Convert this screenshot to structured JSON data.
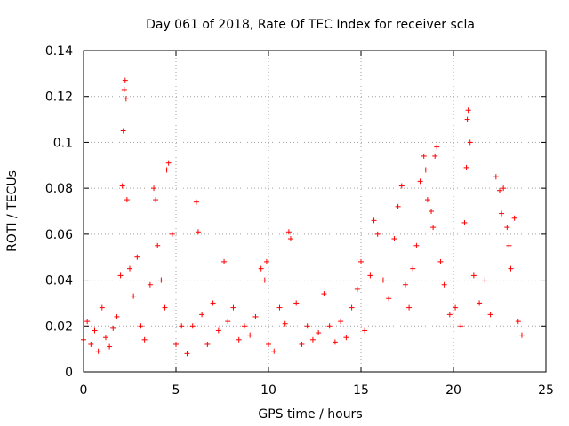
{
  "chart_data": {
    "type": "scatter",
    "title": "Day 061 of 2018, Rate Of TEC Index for receiver scla",
    "xlabel": "GPS time / hours",
    "ylabel": "ROTI / TECUs",
    "xlim": [
      0,
      25
    ],
    "ylim": [
      0,
      0.14
    ],
    "xticks": [
      0,
      5,
      10,
      15,
      20,
      25
    ],
    "xtick_labels": [
      "0",
      "5",
      "10",
      "15",
      "20",
      "25"
    ],
    "yticks": [
      0,
      0.02,
      0.04,
      0.06,
      0.08,
      0.1,
      0.12,
      0.14
    ],
    "ytick_labels": [
      "0",
      "0.02",
      "0.04",
      "0.06",
      "0.08",
      "0.1",
      "0.12",
      "0.14"
    ],
    "grid": true,
    "marker": "plus",
    "color": "#ff0000",
    "series": [
      {
        "name": "ROTI",
        "x": [
          0.0,
          0.2,
          0.4,
          0.6,
          0.8,
          1.0,
          1.2,
          1.4,
          1.6,
          1.8,
          2.0,
          2.1,
          2.15,
          2.2,
          2.25,
          2.3,
          2.35,
          2.5,
          2.7,
          2.9,
          3.1,
          3.3,
          3.6,
          3.8,
          3.9,
          4.0,
          4.2,
          4.4,
          4.5,
          4.6,
          4.8,
          5.0,
          5.3,
          5.6,
          5.9,
          6.1,
          6.2,
          6.4,
          6.7,
          7.0,
          7.3,
          7.6,
          7.8,
          8.1,
          8.4,
          8.7,
          9.0,
          9.3,
          9.6,
          9.8,
          9.9,
          10.0,
          10.3,
          10.6,
          10.9,
          11.1,
          11.2,
          11.5,
          11.8,
          12.1,
          12.4,
          12.7,
          13.0,
          13.3,
          13.6,
          13.9,
          14.2,
          14.5,
          14.8,
          15.0,
          15.2,
          15.5,
          15.7,
          15.9,
          16.2,
          16.5,
          16.8,
          17.0,
          17.2,
          17.4,
          17.6,
          17.8,
          18.0,
          18.2,
          18.4,
          18.5,
          18.6,
          18.8,
          18.9,
          19.0,
          19.1,
          19.3,
          19.5,
          19.8,
          20.1,
          20.4,
          20.6,
          20.7,
          20.75,
          20.8,
          20.9,
          21.1,
          21.4,
          21.7,
          22.0,
          22.3,
          22.5,
          22.6,
          22.7,
          22.9,
          23.0,
          23.1,
          23.3,
          23.5,
          23.7
        ],
        "y": [
          0.014,
          0.022,
          0.012,
          0.018,
          0.009,
          0.028,
          0.015,
          0.011,
          0.019,
          0.024,
          0.042,
          0.081,
          0.105,
          0.123,
          0.127,
          0.119,
          0.075,
          0.045,
          0.033,
          0.05,
          0.02,
          0.014,
          0.038,
          0.08,
          0.075,
          0.055,
          0.04,
          0.028,
          0.088,
          0.091,
          0.06,
          0.012,
          0.02,
          0.008,
          0.02,
          0.074,
          0.061,
          0.025,
          0.012,
          0.03,
          0.018,
          0.048,
          0.022,
          0.028,
          0.014,
          0.02,
          0.016,
          0.024,
          0.045,
          0.04,
          0.048,
          0.012,
          0.009,
          0.028,
          0.021,
          0.061,
          0.058,
          0.03,
          0.012,
          0.02,
          0.014,
          0.017,
          0.034,
          0.02,
          0.013,
          0.022,
          0.015,
          0.028,
          0.036,
          0.048,
          0.018,
          0.042,
          0.066,
          0.06,
          0.04,
          0.032,
          0.058,
          0.072,
          0.081,
          0.038,
          0.028,
          0.045,
          0.055,
          0.083,
          0.094,
          0.088,
          0.075,
          0.07,
          0.063,
          0.094,
          0.098,
          0.048,
          0.038,
          0.025,
          0.028,
          0.02,
          0.065,
          0.089,
          0.11,
          0.114,
          0.1,
          0.042,
          0.03,
          0.04,
          0.025,
          0.085,
          0.079,
          0.069,
          0.08,
          0.063,
          0.055,
          0.045,
          0.067,
          0.022,
          0.016
        ]
      }
    ]
  }
}
